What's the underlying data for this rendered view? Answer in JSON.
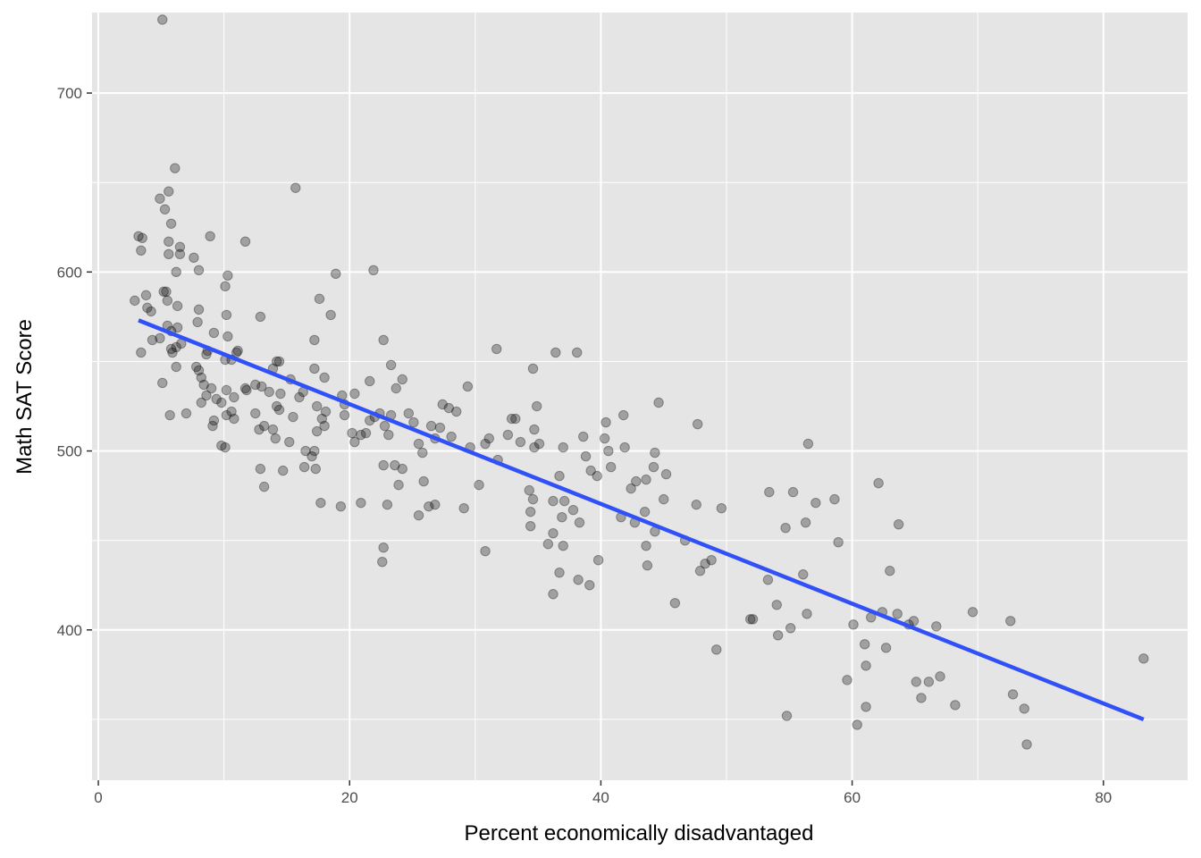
{
  "chart_data": {
    "type": "scatter",
    "title": "",
    "xlabel": "Percent economically disadvantaged",
    "ylabel": "Math SAT Score",
    "xlim": [
      -0.5,
      86.7
    ],
    "ylim": [
      316,
      745
    ],
    "x_ticks": [
      0,
      20,
      40,
      60,
      80
    ],
    "x_tick_labels": [
      "0",
      "20",
      "40",
      "60",
      "80"
    ],
    "y_ticks": [
      400,
      500,
      600,
      700
    ],
    "y_tick_labels": [
      "400",
      "500",
      "600",
      "700"
    ],
    "grid": true,
    "legend": "none",
    "colors": {
      "panel_bg": "#e5e5e5",
      "grid": "#ffffff",
      "points": "#000000",
      "trend_line": "#3050f8",
      "tick_mark": "#333333"
    },
    "trend_line": {
      "x": [
        3.2,
        83.2
      ],
      "y": [
        573,
        350
      ]
    },
    "points": [
      [
        5.1,
        741
      ],
      [
        6.1,
        658
      ],
      [
        3.2,
        620
      ],
      [
        3.5,
        619
      ],
      [
        8.9,
        620
      ],
      [
        11.7,
        617
      ],
      [
        3.4,
        612
      ],
      [
        4.9,
        641
      ],
      [
        5.3,
        635
      ],
      [
        5.6,
        645
      ],
      [
        5.8,
        627
      ],
      [
        5.6,
        617
      ],
      [
        6.5,
        614
      ],
      [
        5.6,
        610
      ],
      [
        6.5,
        610
      ],
      [
        7.6,
        608
      ],
      [
        8.0,
        601
      ],
      [
        6.2,
        600
      ],
      [
        10.3,
        598
      ],
      [
        18.9,
        599
      ],
      [
        21.9,
        601
      ],
      [
        15.7,
        647
      ],
      [
        10.1,
        592
      ],
      [
        3.8,
        587
      ],
      [
        5.2,
        589
      ],
      [
        5.4,
        589
      ],
      [
        2.9,
        584
      ],
      [
        5.5,
        584
      ],
      [
        6.3,
        581
      ],
      [
        4.2,
        578
      ],
      [
        8.0,
        579
      ],
      [
        10.2,
        576
      ],
      [
        12.9,
        575
      ],
      [
        17.6,
        585
      ],
      [
        18.5,
        576
      ],
      [
        3.9,
        580
      ],
      [
        5.5,
        570
      ],
      [
        6.3,
        569
      ],
      [
        5.8,
        567
      ],
      [
        7.9,
        572
      ],
      [
        9.2,
        566
      ],
      [
        10.3,
        564
      ],
      [
        4.3,
        562
      ],
      [
        4.9,
        563
      ],
      [
        6.6,
        560
      ],
      [
        6.2,
        558
      ],
      [
        5.8,
        557
      ],
      [
        5.9,
        555
      ],
      [
        3.4,
        555
      ],
      [
        8.6,
        554
      ],
      [
        8.7,
        556
      ],
      [
        11.1,
        556
      ],
      [
        11.0,
        555
      ],
      [
        10.1,
        551
      ],
      [
        10.6,
        551
      ],
      [
        14.2,
        550
      ],
      [
        14.4,
        550
      ],
      [
        13.9,
        546
      ],
      [
        17.2,
        546
      ],
      [
        17.2,
        562
      ],
      [
        22.7,
        562
      ],
      [
        6.2,
        547
      ],
      [
        7.8,
        547
      ],
      [
        8.0,
        545
      ],
      [
        8.2,
        541
      ],
      [
        8.4,
        537
      ],
      [
        9.0,
        535
      ],
      [
        8.6,
        531
      ],
      [
        9.4,
        529
      ],
      [
        9.8,
        527
      ],
      [
        10.2,
        534
      ],
      [
        10.8,
        530
      ],
      [
        11.7,
        535
      ],
      [
        12.5,
        537
      ],
      [
        13.0,
        536
      ],
      [
        13.6,
        533
      ],
      [
        14.5,
        532
      ],
      [
        15.3,
        540
      ],
      [
        16.0,
        530
      ],
      [
        16.3,
        533
      ],
      [
        17.4,
        525
      ],
      [
        18.0,
        541
      ],
      [
        19.4,
        531
      ],
      [
        19.6,
        526
      ],
      [
        20.4,
        532
      ],
      [
        5.1,
        538
      ],
      [
        5.7,
        520
      ],
      [
        7.0,
        521
      ],
      [
        8.2,
        527
      ],
      [
        9.1,
        514
      ],
      [
        9.2,
        517
      ],
      [
        9.8,
        503
      ],
      [
        10.1,
        502
      ],
      [
        10.2,
        520
      ],
      [
        10.6,
        522
      ],
      [
        10.8,
        518
      ],
      [
        11.8,
        534
      ],
      [
        12.5,
        521
      ],
      [
        12.8,
        512
      ],
      [
        13.2,
        514
      ],
      [
        13.9,
        512
      ],
      [
        14.1,
        507
      ],
      [
        14.2,
        525
      ],
      [
        14.4,
        523
      ],
      [
        15.2,
        505
      ],
      [
        15.5,
        519
      ],
      [
        16.5,
        500
      ],
      [
        17.0,
        497
      ],
      [
        17.2,
        500
      ],
      [
        17.4,
        511
      ],
      [
        17.8,
        518
      ],
      [
        18.0,
        514
      ],
      [
        18.1,
        522
      ],
      [
        17.3,
        490
      ],
      [
        16.4,
        491
      ],
      [
        19.6,
        520
      ],
      [
        20.2,
        510
      ],
      [
        20.4,
        505
      ],
      [
        20.9,
        509
      ],
      [
        21.3,
        510
      ],
      [
        21.6,
        517
      ],
      [
        22.0,
        519
      ],
      [
        22.4,
        521
      ],
      [
        22.8,
        514
      ],
      [
        23.1,
        509
      ],
      [
        23.3,
        520
      ],
      [
        23.7,
        535
      ],
      [
        24.2,
        540
      ],
      [
        23.3,
        548
      ],
      [
        21.6,
        539
      ],
      [
        24.7,
        521
      ],
      [
        25.1,
        516
      ],
      [
        25.5,
        504
      ],
      [
        25.8,
        499
      ],
      [
        26.5,
        514
      ],
      [
        26.8,
        507
      ],
      [
        27.2,
        513
      ],
      [
        27.4,
        526
      ],
      [
        27.9,
        524
      ],
      [
        28.5,
        522
      ],
      [
        28.1,
        508
      ],
      [
        29.4,
        536
      ],
      [
        29.6,
        502
      ],
      [
        30.3,
        481
      ],
      [
        30.8,
        504
      ],
      [
        31.1,
        507
      ],
      [
        31.7,
        557
      ],
      [
        31.8,
        495
      ],
      [
        32.6,
        509
      ],
      [
        32.9,
        518
      ],
      [
        33.2,
        518
      ],
      [
        33.6,
        505
      ],
      [
        34.6,
        546
      ],
      [
        34.7,
        512
      ],
      [
        34.7,
        502
      ],
      [
        34.9,
        525
      ],
      [
        35.1,
        504
      ],
      [
        36.4,
        555
      ],
      [
        37.0,
        502
      ],
      [
        38.1,
        555
      ],
      [
        38.6,
        508
      ],
      [
        38.8,
        497
      ],
      [
        39.2,
        489
      ],
      [
        39.7,
        486
      ],
      [
        40.4,
        516
      ],
      [
        40.6,
        500
      ],
      [
        41.8,
        520
      ],
      [
        41.9,
        502
      ],
      [
        42.4,
        479
      ],
      [
        42.8,
        483
      ],
      [
        43.6,
        484
      ],
      [
        44.2,
        491
      ],
      [
        44.3,
        499
      ],
      [
        44.6,
        527
      ],
      [
        45.2,
        487
      ],
      [
        47.7,
        515
      ],
      [
        12.9,
        490
      ],
      [
        13.2,
        480
      ],
      [
        14.7,
        489
      ],
      [
        19.3,
        469
      ],
      [
        20.9,
        471
      ],
      [
        17.7,
        471
      ],
      [
        22.7,
        492
      ],
      [
        23.0,
        470
      ],
      [
        23.6,
        492
      ],
      [
        23.9,
        481
      ],
      [
        24.2,
        490
      ],
      [
        25.5,
        464
      ],
      [
        25.9,
        483
      ],
      [
        26.3,
        469
      ],
      [
        26.8,
        470
      ],
      [
        29.1,
        468
      ],
      [
        30.8,
        444
      ],
      [
        22.6,
        438
      ],
      [
        22.7,
        446
      ],
      [
        34.3,
        478
      ],
      [
        34.4,
        466
      ],
      [
        34.6,
        473
      ],
      [
        36.2,
        472
      ],
      [
        36.7,
        486
      ],
      [
        37.1,
        472
      ],
      [
        37.8,
        467
      ],
      [
        38.3,
        460
      ],
      [
        39.8,
        439
      ],
      [
        40.3,
        507
      ],
      [
        40.8,
        491
      ],
      [
        41.6,
        463
      ],
      [
        42.7,
        460
      ],
      [
        43.5,
        466
      ],
      [
        44.3,
        455
      ],
      [
        45.0,
        473
      ],
      [
        46.7,
        450
      ],
      [
        47.6,
        470
      ],
      [
        49.6,
        468
      ],
      [
        34.4,
        458
      ],
      [
        35.8,
        448
      ],
      [
        36.2,
        454
      ],
      [
        36.9,
        463
      ],
      [
        38.2,
        428
      ],
      [
        39.1,
        425
      ],
      [
        36.2,
        420
      ],
      [
        36.7,
        432
      ],
      [
        37.0,
        447
      ],
      [
        43.7,
        436
      ],
      [
        43.6,
        447
      ],
      [
        45.9,
        415
      ],
      [
        47.9,
        433
      ],
      [
        48.3,
        437
      ],
      [
        48.8,
        439
      ],
      [
        49.2,
        389
      ],
      [
        51.9,
        406
      ],
      [
        52.1,
        406
      ],
      [
        53.3,
        428
      ],
      [
        53.4,
        477
      ],
      [
        54.0,
        414
      ],
      [
        54.1,
        397
      ],
      [
        54.7,
        457
      ],
      [
        55.1,
        401
      ],
      [
        55.3,
        477
      ],
      [
        56.1,
        431
      ],
      [
        56.3,
        460
      ],
      [
        56.5,
        504
      ],
      [
        56.4,
        409
      ],
      [
        57.1,
        471
      ],
      [
        58.6,
        473
      ],
      [
        58.9,
        449
      ],
      [
        59.6,
        372
      ],
      [
        60.1,
        403
      ],
      [
        60.4,
        347
      ],
      [
        61.0,
        392
      ],
      [
        61.1,
        357
      ],
      [
        61.1,
        380
      ],
      [
        61.5,
        407
      ],
      [
        62.1,
        482
      ],
      [
        62.4,
        410
      ],
      [
        62.7,
        390
      ],
      [
        63.0,
        433
      ],
      [
        63.6,
        409
      ],
      [
        63.7,
        459
      ],
      [
        64.5,
        403
      ],
      [
        64.9,
        405
      ],
      [
        65.1,
        371
      ],
      [
        65.5,
        362
      ],
      [
        66.1,
        371
      ],
      [
        66.7,
        402
      ],
      [
        67.0,
        374
      ],
      [
        68.2,
        358
      ],
      [
        69.6,
        410
      ],
      [
        72.6,
        405
      ],
      [
        72.8,
        364
      ],
      [
        73.7,
        356
      ],
      [
        73.9,
        336
      ],
      [
        83.2,
        384
      ],
      [
        54.8,
        352
      ]
    ]
  }
}
